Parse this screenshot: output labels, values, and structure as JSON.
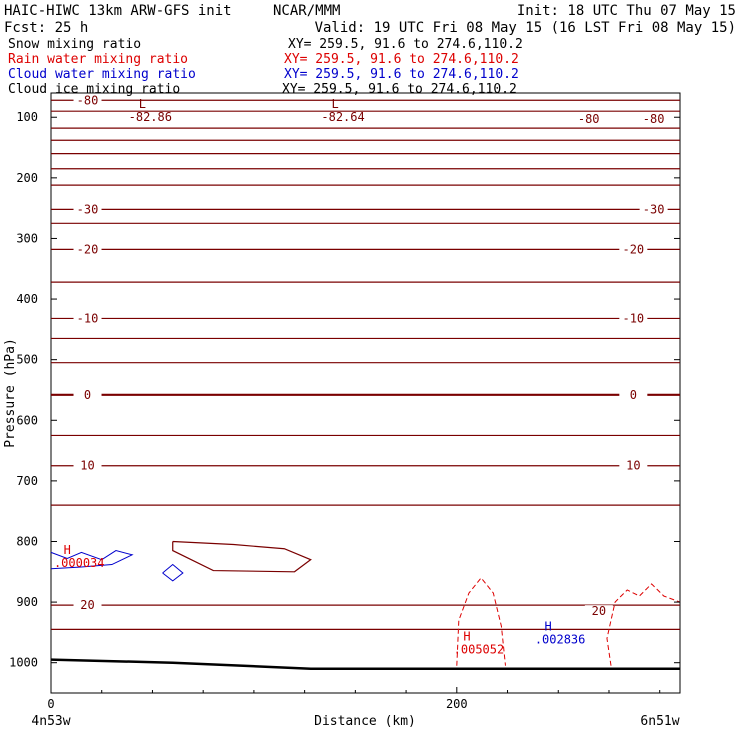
{
  "header": {
    "model": "HAIC-HIWC 13km ARW-GFS init",
    "org": "NCAR/MMM",
    "init": "Init: 18 UTC Thu 07 May 15",
    "fcst": "Fcst:    25 h",
    "valid": "Valid: 19 UTC Fri 08 May 15 (16 LST Fri 08 May 15)"
  },
  "fields": [
    {
      "name": "Snow mixing ratio",
      "xy": "XY= 259.5, 91.6 to 274.6,110.2",
      "color": "#000000"
    },
    {
      "name": "Rain water mixing ratio",
      "xy": "XY= 259.5, 91.6 to 274.6,110.2",
      "color": "#dd0000"
    },
    {
      "name": "Cloud water mixing ratio",
      "xy": "XY= 259.5, 91.6 to 274.6,110.2",
      "color": "#0000cc"
    },
    {
      "name": "Cloud ice mixing ratio",
      "xy": "XY= 259.5, 91.6 to 274.6,110.2",
      "color": "#000000"
    }
  ],
  "colors": {
    "temperature": "#7a0000",
    "rain": "#dd0000",
    "cloud": "#0000cc",
    "terrain": "#000000"
  },
  "chart_data": {
    "type": "line",
    "xlabel": "Distance (km)",
    "ylabel": "Pressure (hPa)",
    "xlim": [
      0,
      310
    ],
    "ylim": [
      1050,
      60
    ],
    "x_ticks": [
      "0",
      "200"
    ],
    "x_tick_values": [
      0,
      200
    ],
    "y_ticks": [
      "100",
      "200",
      "300",
      "400",
      "500",
      "600",
      "700",
      "800",
      "900",
      "1000"
    ],
    "y_tick_values": [
      100,
      200,
      300,
      400,
      500,
      600,
      700,
      800,
      900,
      1000
    ],
    "endpoints": {
      "left": "4n53w",
      "right": "6n51w"
    },
    "isotherms": [
      {
        "label": "-80",
        "p": 72
      },
      {
        "p": 90
      },
      {
        "p": 118
      },
      {
        "p": 138
      },
      {
        "p": 160
      },
      {
        "p": 185
      },
      {
        "p": 212
      },
      {
        "label": "-30",
        "p": 252
      },
      {
        "p": 275
      },
      {
        "label": "-20",
        "p": 318
      },
      {
        "p": 372
      },
      {
        "label": "-10",
        "p": 432
      },
      {
        "p": 465
      },
      {
        "p": 505
      },
      {
        "label": "0",
        "p": 558
      },
      {
        "p": 625
      },
      {
        "label": "10",
        "p": 675
      },
      {
        "p": 740
      },
      {
        "label": "20",
        "p": 905
      },
      {
        "p": 945
      }
    ],
    "extra_labels": [
      {
        "text": "-80",
        "x": 265,
        "p": 103
      },
      {
        "text": "-80",
        "x": 297,
        "p": 103
      },
      {
        "text": "-30",
        "x": 297,
        "p": 252
      },
      {
        "text": "-20",
        "x": 287,
        "p": 318
      },
      {
        "text": "-10",
        "x": 287,
        "p": 432
      },
      {
        "text": "0",
        "x": 287,
        "p": 558
      },
      {
        "text": "10",
        "x": 287,
        "p": 675
      },
      {
        "text": "20",
        "x": 270,
        "p": 915
      }
    ],
    "lows": [
      {
        "symbol": "L",
        "value": "-82.86",
        "x": 45,
        "p": 90
      },
      {
        "symbol": "L",
        "value": "-82.64",
        "x": 140,
        "p": 90
      }
    ],
    "highs": [
      {
        "symbol": "H",
        "value": ".000034",
        "x": 8,
        "p": 826,
        "color": "#dd0000"
      },
      {
        "symbol": "H",
        "value": ".005052",
        "x": 205,
        "p": 968,
        "color": "#dd0000"
      },
      {
        "symbol": "H",
        "value": ".002836",
        "x": 245,
        "p": 952,
        "color": "#0000cc"
      }
    ],
    "terrain_p": [
      [
        0,
        995
      ],
      [
        60,
        1000
      ],
      [
        128,
        1010
      ],
      [
        200,
        1010
      ],
      [
        310,
        1010
      ]
    ]
  }
}
